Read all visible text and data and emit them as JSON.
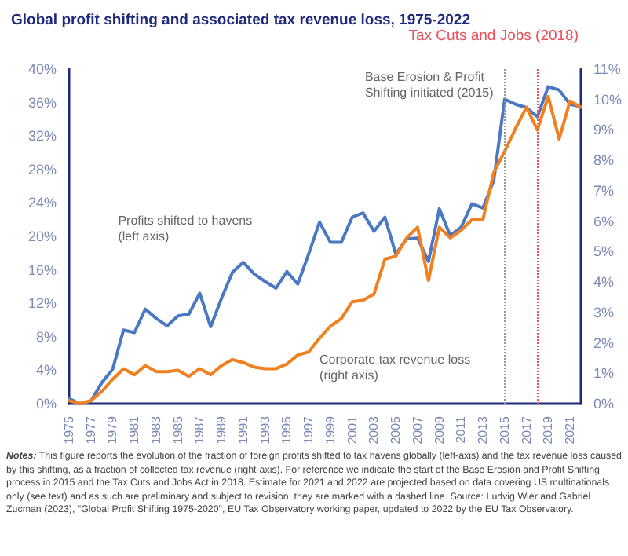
{
  "chart_data": {
    "type": "line",
    "title": "Global profit shifting and associated tax revenue loss, 1975-2022",
    "x": [
      1975,
      1976,
      1977,
      1978,
      1979,
      1980,
      1981,
      1982,
      1983,
      1984,
      1985,
      1986,
      1987,
      1988,
      1989,
      1990,
      1991,
      1992,
      1993,
      1994,
      1995,
      1996,
      1997,
      1998,
      1999,
      2000,
      2001,
      2002,
      2003,
      2004,
      2005,
      2006,
      2007,
      2008,
      2009,
      2010,
      2011,
      2012,
      2013,
      2014,
      2015,
      2016,
      2017,
      2018,
      2019,
      2020,
      2021,
      2022
    ],
    "series": [
      {
        "name": "Profits shifted to havens\n(left axis)",
        "color": "#4a78c2",
        "axis": "y",
        "values": [
          0.6,
          0,
          0.3,
          2.5,
          4.1,
          8.8,
          8.5,
          11.3,
          10.2,
          9.3,
          10.5,
          10.7,
          13.2,
          9.2,
          12.6,
          15.7,
          16.9,
          15.5,
          14.6,
          13.8,
          15.8,
          14.3,
          17.9,
          21.7,
          19.3,
          19.3,
          22.3,
          22.8,
          20.6,
          22.3,
          17.9,
          19.7,
          19.8,
          17.0,
          23.3,
          20.1,
          21.1,
          23.9,
          23.4,
          26.7,
          36.4,
          35.8,
          35.4,
          34.3,
          37.9,
          37.5,
          35.8,
          35.5
        ]
      },
      {
        "name": "Corporate tax revenue loss\n(right axis)",
        "color": "#f08020",
        "axis": "y2",
        "values": [
          0.1,
          0,
          0.1,
          0.4,
          0.8,
          1.15,
          0.95,
          1.25,
          1.05,
          1.05,
          1.1,
          0.9,
          1.15,
          0.95,
          1.25,
          1.45,
          1.35,
          1.2,
          1.15,
          1.15,
          1.3,
          1.6,
          1.7,
          2.15,
          2.55,
          2.8,
          3.35,
          3.4,
          3.6,
          4.75,
          4.85,
          5.45,
          5.8,
          4.05,
          5.8,
          5.45,
          5.7,
          6.05,
          6.05,
          7.6,
          8.3,
          9.05,
          9.75,
          9.0,
          10.1,
          8.7,
          9.95,
          9.75
        ]
      }
    ],
    "xlim": [
      1975,
      2022
    ],
    "xticks": [
      1975,
      1977,
      1979,
      1981,
      1983,
      1985,
      1987,
      1989,
      1991,
      1993,
      1995,
      1997,
      1999,
      2001,
      2003,
      2005,
      2007,
      2009,
      2011,
      2013,
      2015,
      2017,
      2019,
      2021
    ],
    "ylim": [
      0,
      40
    ],
    "yticks": [
      {
        "value": 0,
        "label": "0%"
      },
      {
        "value": 4,
        "label": "4%"
      },
      {
        "value": 8,
        "label": "8%"
      },
      {
        "value": 12,
        "label": "12%"
      },
      {
        "value": 16,
        "label": "16%"
      },
      {
        "value": 20,
        "label": "20%"
      },
      {
        "value": 24,
        "label": "24%"
      },
      {
        "value": 28,
        "label": "28%"
      },
      {
        "value": 32,
        "label": "32%"
      },
      {
        "value": 36,
        "label": "36%"
      },
      {
        "value": 40,
        "label": "40%"
      }
    ],
    "y2lim": [
      0,
      11
    ],
    "y2ticks": [
      {
        "value": 0,
        "label": "0%"
      },
      {
        "value": 1,
        "label": "1%"
      },
      {
        "value": 2,
        "label": "2%"
      },
      {
        "value": 3,
        "label": "3%"
      },
      {
        "value": 4,
        "label": "4%"
      },
      {
        "value": 5,
        "label": "5%"
      },
      {
        "value": 6,
        "label": "6%"
      },
      {
        "value": 7,
        "label": "7%"
      },
      {
        "value": 8,
        "label": "8%"
      },
      {
        "value": 9,
        "label": "9%"
      },
      {
        "value": 10,
        "label": "10%"
      },
      {
        "value": 11,
        "label": "11%"
      }
    ],
    "ref_lines": [
      {
        "axis": "x",
        "value": 2015,
        "label": "Base Erosion & Profit\nShifting initiated (2015)",
        "color": "#999999",
        "line_style": "dotted"
      },
      {
        "axis": "x",
        "value": 2018,
        "label": "Tax Cuts and Jobs (2018)",
        "color": "#e8505b",
        "line_style": "dotted"
      }
    ],
    "annotations": [
      "Notes: This figure reports the evolution of the fraction of foreign profits shifted to tax havens globally (left-axis) and the tax revenue loss caused by this shifting, as a fraction of collected tax revenue (right-axis). For reference we indicate the start of the Base Erosion and Profit Shifting process in 2015 and the Tax Cuts and Jobs Act in 2018. Estimate for 2021 and 2022 are projected based on data covering US multinationals only (see text) and as such are preliminary and subject to revision; they are marked with a dashed line. Source: Ludvig Wier and Gabriel Zucman (2023), \"Global Profit Shifting 1975-2020\", EU Tax Observatory working paper, updated to 2022 by the EU Tax Observatory."
    ],
    "grid": false,
    "legend": false,
    "marker": "none",
    "line_style": "solid"
  }
}
